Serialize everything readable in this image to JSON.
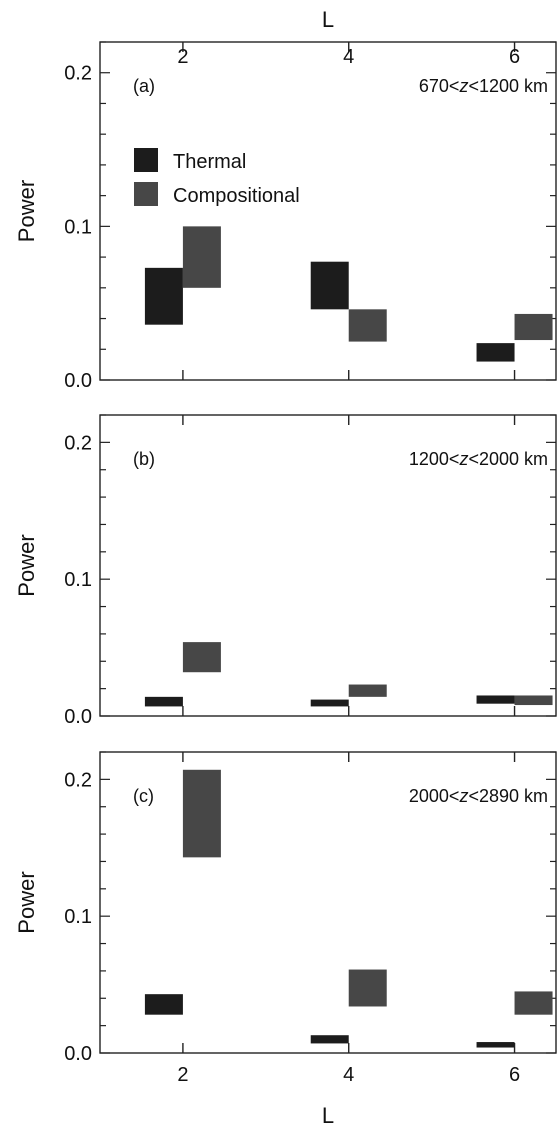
{
  "colors": {
    "thermal": "#1c1c1c",
    "compositional": "#474747"
  },
  "top_axis_label": "L",
  "bottom_axis_label": "L",
  "legend": {
    "thermal": "Thermal",
    "compositional": "Compositional"
  },
  "chart_data": [
    {
      "type": "bar",
      "panel_label": "(a)",
      "range_pre": "670<",
      "range_var": "z",
      "range_post": "<1200 km",
      "ylabel": "Power",
      "xlim": [
        1,
        6.5
      ],
      "ylim": [
        0,
        0.22
      ],
      "xticks": [
        2,
        4,
        6
      ],
      "yticks": [
        0.0,
        0.1,
        0.2
      ],
      "ytick_labels": [
        "0.0",
        "0.1",
        "0.2"
      ],
      "series": [
        {
          "name": "Thermal",
          "x": [
            2,
            4,
            6
          ],
          "low": [
            0.036,
            0.046,
            0.012
          ],
          "high": [
            0.073,
            0.077,
            0.024
          ]
        },
        {
          "name": "Compositional",
          "x": [
            2,
            4,
            6
          ],
          "low": [
            0.06,
            0.025,
            0.026
          ],
          "high": [
            0.1,
            0.046,
            0.043
          ]
        }
      ]
    },
    {
      "type": "bar",
      "panel_label": "(b)",
      "range_pre": "1200<",
      "range_var": "z",
      "range_post": "<2000 km",
      "ylabel": "Power",
      "xlim": [
        1,
        6.5
      ],
      "ylim": [
        0,
        0.22
      ],
      "xticks": [
        2,
        4,
        6
      ],
      "yticks": [
        0.0,
        0.1,
        0.2
      ],
      "ytick_labels": [
        "0.0",
        "0.1",
        "0.2"
      ],
      "series": [
        {
          "name": "Thermal",
          "x": [
            2,
            4,
            6
          ],
          "low": [
            0.007,
            0.007,
            0.009
          ],
          "high": [
            0.014,
            0.012,
            0.015
          ]
        },
        {
          "name": "Compositional",
          "x": [
            2,
            4,
            6
          ],
          "low": [
            0.032,
            0.014,
            0.008
          ],
          "high": [
            0.054,
            0.023,
            0.015
          ]
        }
      ]
    },
    {
      "type": "bar",
      "panel_label": "(c)",
      "range_pre": "2000<",
      "range_var": "z",
      "range_post": "<2890 km",
      "ylabel": "Power",
      "xlim": [
        1,
        6.5
      ],
      "ylim": [
        0,
        0.22
      ],
      "xticks": [
        2,
        4,
        6
      ],
      "yticks": [
        0.0,
        0.1,
        0.2
      ],
      "ytick_labels": [
        "0.0",
        "0.1",
        "0.2"
      ],
      "series": [
        {
          "name": "Thermal",
          "x": [
            2,
            4,
            6
          ],
          "low": [
            0.028,
            0.007,
            0.004
          ],
          "high": [
            0.043,
            0.013,
            0.008
          ]
        },
        {
          "name": "Compositional",
          "x": [
            2,
            4,
            6
          ],
          "low": [
            0.143,
            0.034,
            0.028
          ],
          "high": [
            0.207,
            0.061,
            0.045
          ]
        }
      ]
    }
  ]
}
